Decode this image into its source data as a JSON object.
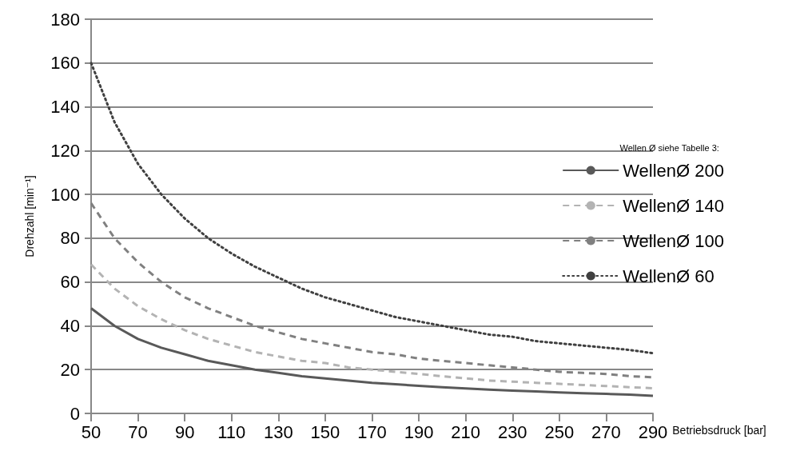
{
  "chart_data": {
    "type": "line",
    "x": [
      50,
      60,
      70,
      80,
      90,
      100,
      110,
      120,
      130,
      140,
      150,
      160,
      170,
      180,
      190,
      200,
      210,
      220,
      230,
      240,
      250,
      260,
      270,
      280,
      290
    ],
    "series": [
      {
        "name": "WellenØ 200",
        "color": "#595959",
        "line_style": "solid",
        "values": [
          48,
          40,
          34,
          30,
          27,
          24,
          22,
          20,
          18.5,
          17,
          16,
          15,
          14,
          13.3,
          12.6,
          12,
          11.4,
          10.9,
          10.4,
          10,
          9.6,
          9.2,
          8.9,
          8.6,
          8
        ]
      },
      {
        "name": "WellenØ 140",
        "color": "#b3b3b3",
        "line_style": "dashed",
        "values": [
          68,
          57,
          49,
          43,
          38,
          34,
          31,
          28,
          26,
          24,
          23,
          21,
          20,
          19,
          18,
          17,
          16,
          15,
          14.5,
          14,
          13.5,
          13,
          12.5,
          12,
          11.5
        ]
      },
      {
        "name": "WellenØ 100",
        "color": "#808080",
        "line_style": "dashed",
        "values": [
          96,
          80,
          69,
          60,
          53,
          48,
          44,
          40,
          37,
          34,
          32,
          30,
          28,
          27,
          25,
          24,
          23,
          22,
          21,
          20,
          19,
          18.5,
          18,
          17,
          16.5
        ]
      },
      {
        "name": "WellenØ 60",
        "color": "#404040",
        "line_style": "dotted",
        "values": [
          160,
          133,
          114,
          100,
          89,
          80,
          73,
          67,
          62,
          57,
          53,
          50,
          47,
          44,
          42,
          40,
          38,
          36,
          35,
          33,
          32,
          31,
          30,
          29,
          27.5
        ]
      }
    ],
    "xlabel": "Betriebsdruck [bar]",
    "ylabel": "Drehzahl [min⁻¹]",
    "legend_title": "Wellen Ø siehe Tabelle 3:",
    "xlim": [
      50,
      290
    ],
    "xticks": [
      50,
      70,
      90,
      110,
      130,
      150,
      170,
      190,
      210,
      230,
      250,
      270,
      290
    ],
    "ylim": [
      0,
      180
    ],
    "yticks": [
      0,
      20,
      40,
      60,
      80,
      100,
      120,
      140,
      160,
      180
    ],
    "grid": "y",
    "legend": "right",
    "marker": "none"
  }
}
